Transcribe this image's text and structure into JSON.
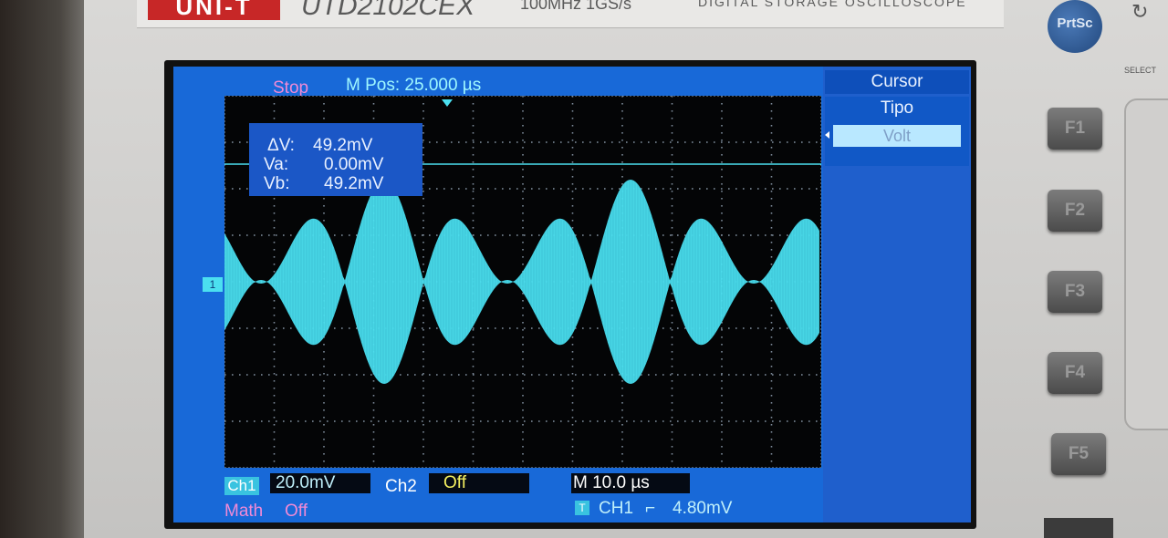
{
  "device": {
    "brand": "UNI-T",
    "model": "UTD2102CEX",
    "spec": "100MHz  1GS/s",
    "name": "DIGITAL STORAGE OSCILLOSCOPE",
    "prtsc_label": "PrtSc",
    "select_label": "SELECT",
    "function_buttons": [
      "F1",
      "F2",
      "F3",
      "F4",
      "F5"
    ]
  },
  "screen": {
    "status": "Stop",
    "m_pos": "M Pos: 25.000 µs",
    "menu": {
      "title": "Cursor",
      "item_label": "Tipo",
      "item_value": "Volt"
    },
    "cursor_readout": {
      "delta_label": "ΔV:",
      "delta_value": "49.2mV",
      "va_label": "Va:",
      "va_value": "0.00mV",
      "vb_label": "Vb:",
      "vb_value": "49.2mV"
    },
    "channel_marker": "1",
    "bottom": {
      "ch1_tag": "Ch1",
      "ch1_scale": "20.0mV",
      "ch2_label": "Ch2",
      "ch2_state": "Off",
      "m_scale": "M 10.0 µs",
      "math_label": "Math",
      "math_state": "Off",
      "trig_tag": "T",
      "trig_source": "CH1",
      "trig_slope": "⌐",
      "trig_level": "4.80mV"
    },
    "colors": {
      "screen_bg": "#1869d8",
      "trace": "#4be0f0",
      "status": "#f08ad6",
      "ch2": "#f5f060"
    }
  }
}
